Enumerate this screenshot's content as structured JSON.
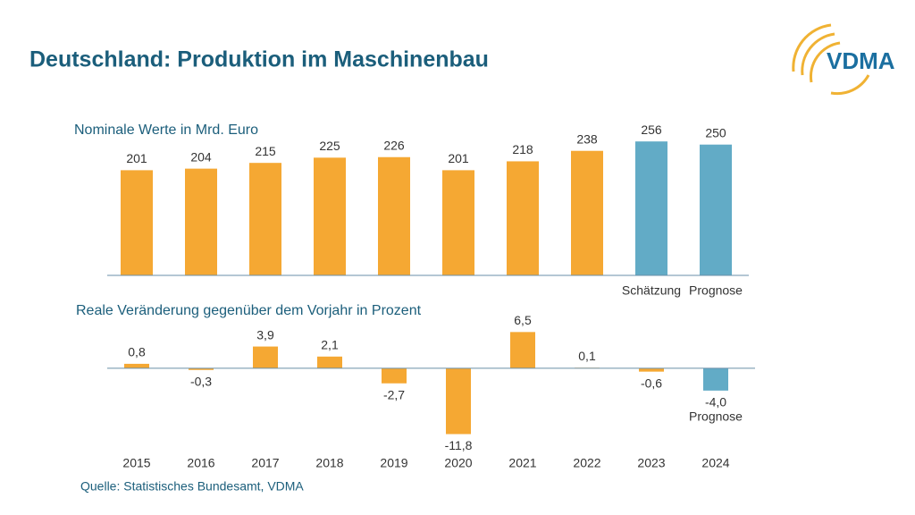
{
  "title": "Deutschland: Produktion im Maschinenbau",
  "logo": "VDMA",
  "source": "Quelle: Statistisches Bundesamt, VDMA",
  "chart_data": [
    {
      "type": "bar",
      "title": "Nominale Werte in Mrd. Euro",
      "categories": [
        null,
        null,
        null,
        null,
        null,
        null,
        null,
        null,
        "Schätzung",
        "Prognose"
      ],
      "values": [
        201,
        204,
        215,
        225,
        226,
        201,
        218,
        238,
        256,
        250
      ],
      "colors": [
        "#f5a833",
        "#f5a833",
        "#f5a833",
        "#f5a833",
        "#f5a833",
        "#f5a833",
        "#f5a833",
        "#f5a833",
        "#62abc6",
        "#62abc6"
      ],
      "ylim": [
        0,
        270
      ]
    },
    {
      "type": "bar",
      "title": "Reale Veränderung gegenüber dem Vorjahr in Prozent",
      "categories": [
        "2015",
        "2016",
        "2017",
        "2018",
        "2019",
        "2020",
        "2021",
        "2022",
        "2023",
        "2024"
      ],
      "values": [
        0.8,
        -0.3,
        3.9,
        2.1,
        -2.7,
        -11.8,
        6.5,
        0.1,
        -0.6,
        -4.0
      ],
      "value_labels": [
        "0,8",
        "-0,3",
        "3,9",
        "2,1",
        "-2,7",
        "-11,8",
        "6,5",
        "0,1",
        "-0,6",
        "-4,0"
      ],
      "colors": [
        "#f5a833",
        "#f5a833",
        "#f5a833",
        "#f5a833",
        "#f5a833",
        "#f5a833",
        "#f5a833",
        "#f5a833",
        "#f5a833",
        "#62abc6"
      ],
      "annotation": "Prognose",
      "ylim": [
        -13,
        8
      ]
    }
  ]
}
